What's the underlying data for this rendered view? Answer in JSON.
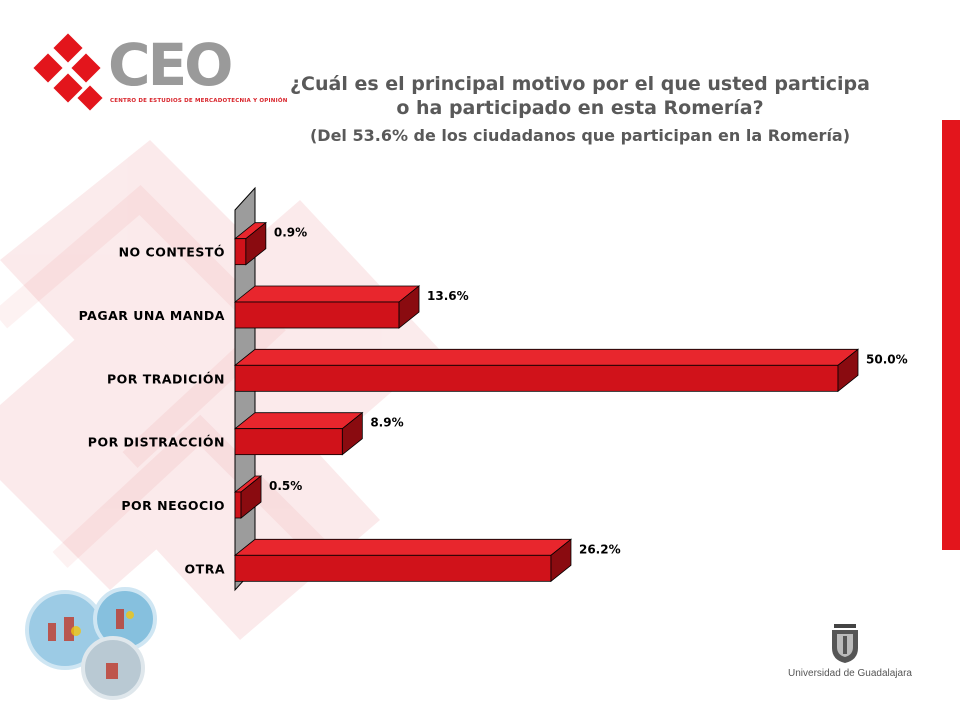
{
  "header": {
    "logo_text": "CEO",
    "logo_subtitle": "CENTRO DE ESTUDIOS DE MERCADOTECNIA Y OPINIÓN",
    "title_line1": "¿Cuál es el principal motivo por el que usted participa",
    "title_line2": "o ha participado en esta Romería?",
    "subtitle": "(Del 53.6% de los ciudadanos que participan en la Romería)"
  },
  "footer": {
    "university": "Universidad de Guadalajara"
  },
  "colors": {
    "bar_front": "#d0121a",
    "bar_top": "#e8262d",
    "bar_side": "#8a0b10",
    "wall": "#9c9c9c",
    "accent_red": "#e3151c",
    "title_gray": "#595959"
  },
  "chart_data": {
    "type": "bar",
    "orientation": "horizontal",
    "style": "3d",
    "categories": [
      "NO CONTESTÓ",
      "PAGAR UNA MANDA",
      "POR TRADICIÓN",
      "POR DISTRACCIÓN",
      "POR NEGOCIO",
      "OTRA"
    ],
    "values": [
      0.9,
      13.6,
      50.0,
      8.9,
      0.5,
      26.2
    ],
    "data_labels": [
      "0.9%",
      "13.6%",
      "50.0%",
      "8.9%",
      "0.5%",
      "26.2%"
    ],
    "xlim": [
      0,
      50
    ],
    "grid": false,
    "legend": "none"
  }
}
